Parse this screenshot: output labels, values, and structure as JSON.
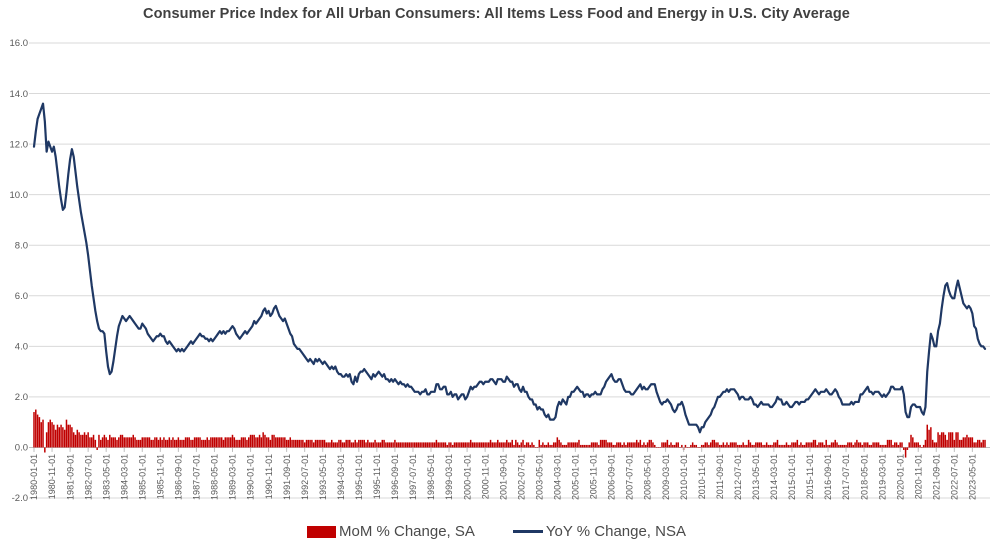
{
  "title": "Consumer Price Index for All Urban Consumers: All Items Less Food and Energy in U.S. City Average",
  "colors": {
    "bar": "#C00000",
    "line": "#1F3864",
    "gridline": "#D9D9D9",
    "axis_line": "#BFBFBF",
    "tick_text": "#595959",
    "title_text": "#404040",
    "legend_text": "#4a4a4a",
    "background": "#FFFFFF"
  },
  "legend": [
    {
      "label": "MoM % Change, SA",
      "swatch": "bar-swatch"
    },
    {
      "label": "YoY % Change, NSA",
      "swatch": "line-swatch"
    }
  ],
  "chart_data": {
    "type": "bar",
    "subtype": "combo bar + line, monthly time series",
    "title": "Consumer Price Index for All Urban Consumers: All Items Less Food and Energy in U.S. City Average",
    "xlabel": "",
    "ylabel": "",
    "start_month": "1980-01",
    "end_month": "2023-12",
    "months_count": 528,
    "ylim": [
      -2.0,
      16.0
    ],
    "grid": "horizontal only",
    "legend_position": "bottom center",
    "y_ticks": [
      "16.0",
      "14.0",
      "12.0",
      "10.0",
      "8.0",
      "6.0",
      "4.0",
      "2.0",
      "0.0",
      "-2.0"
    ],
    "x_tick_every_n_months": 10,
    "x_tick_labels": [
      "1980-01-01",
      "1980-11-01",
      "1981-09-01",
      "1982-07-01",
      "1983-05-01",
      "1984-03-01",
      "1985-01-01",
      "1985-11-01",
      "1986-09-01",
      "1987-07-01",
      "1988-05-01",
      "1989-03-01",
      "1990-01-01",
      "1990-11-01",
      "1991-09-01",
      "1992-07-01",
      "1993-05-01",
      "1994-03-01",
      "1995-01-01",
      "1995-11-01",
      "1996-09-01",
      "1997-07-01",
      "1998-05-01",
      "1999-03-01",
      "2000-01-01",
      "2000-11-01",
      "2001-09-01",
      "2002-07-01",
      "2003-05-01",
      "2004-03-01",
      "2005-01-01",
      "2005-11-01",
      "2006-09-01",
      "2007-07-01",
      "2008-05-01",
      "2009-03-01",
      "2010-01-01",
      "2010-11-01",
      "2011-09-01",
      "2012-07-01",
      "2013-05-01",
      "2014-03-01",
      "2015-01-01",
      "2015-11-01",
      "2016-09-01",
      "2017-07-01",
      "2018-05-01",
      "2019-03-01",
      "2020-01-01",
      "2020-11-01",
      "2021-09-01",
      "2022-07-01",
      "2023-05-01"
    ],
    "series": [
      {
        "name": "MoM % Change, SA",
        "type": "bar",
        "color": "#C00000",
        "values": [
          1.4,
          1.5,
          1.3,
          1.2,
          1.0,
          1.1,
          -0.2,
          0.6,
          1.0,
          1.1,
          1.0,
          0.9,
          0.7,
          0.9,
          0.8,
          0.9,
          0.8,
          0.7,
          1.1,
          0.9,
          0.9,
          0.8,
          0.6,
          0.5,
          0.7,
          0.6,
          0.5,
          0.5,
          0.6,
          0.5,
          0.6,
          0.4,
          0.4,
          0.5,
          0.3,
          -0.1,
          0.5,
          0.3,
          0.4,
          0.5,
          0.4,
          0.3,
          0.5,
          0.4,
          0.4,
          0.4,
          0.3,
          0.4,
          0.5,
          0.5,
          0.4,
          0.4,
          0.4,
          0.4,
          0.4,
          0.5,
          0.4,
          0.3,
          0.3,
          0.3,
          0.4,
          0.4,
          0.4,
          0.4,
          0.4,
          0.3,
          0.3,
          0.4,
          0.4,
          0.3,
          0.4,
          0.3,
          0.4,
          0.3,
          0.3,
          0.4,
          0.3,
          0.4,
          0.3,
          0.3,
          0.4,
          0.3,
          0.3,
          0.3,
          0.4,
          0.4,
          0.4,
          0.3,
          0.3,
          0.4,
          0.4,
          0.4,
          0.4,
          0.3,
          0.3,
          0.3,
          0.4,
          0.3,
          0.4,
          0.4,
          0.4,
          0.4,
          0.4,
          0.4,
          0.4,
          0.3,
          0.4,
          0.4,
          0.4,
          0.4,
          0.5,
          0.4,
          0.3,
          0.3,
          0.3,
          0.4,
          0.4,
          0.4,
          0.3,
          0.4,
          0.5,
          0.5,
          0.5,
          0.4,
          0.4,
          0.5,
          0.4,
          0.6,
          0.5,
          0.4,
          0.4,
          0.3,
          0.5,
          0.5,
          0.4,
          0.4,
          0.4,
          0.4,
          0.4,
          0.4,
          0.3,
          0.3,
          0.4,
          0.3,
          0.3,
          0.3,
          0.3,
          0.3,
          0.3,
          0.3,
          0.2,
          0.3,
          0.3,
          0.3,
          0.3,
          0.2,
          0.3,
          0.3,
          0.3,
          0.3,
          0.3,
          0.3,
          0.2,
          0.2,
          0.2,
          0.3,
          0.2,
          0.2,
          0.2,
          0.3,
          0.3,
          0.2,
          0.2,
          0.3,
          0.3,
          0.3,
          0.2,
          0.2,
          0.3,
          0.2,
          0.3,
          0.3,
          0.3,
          0.3,
          0.2,
          0.3,
          0.2,
          0.2,
          0.2,
          0.3,
          0.2,
          0.2,
          0.2,
          0.3,
          0.3,
          0.2,
          0.2,
          0.2,
          0.2,
          0.2,
          0.3,
          0.2,
          0.2,
          0.2,
          0.2,
          0.2,
          0.2,
          0.2,
          0.2,
          0.2,
          0.2,
          0.2,
          0.2,
          0.2,
          0.2,
          0.2,
          0.2,
          0.2,
          0.2,
          0.2,
          0.2,
          0.2,
          0.2,
          0.3,
          0.2,
          0.2,
          0.2,
          0.2,
          0.2,
          0.1,
          0.2,
          0.2,
          0.1,
          0.2,
          0.2,
          0.2,
          0.2,
          0.2,
          0.2,
          0.2,
          0.2,
          0.2,
          0.3,
          0.2,
          0.2,
          0.2,
          0.2,
          0.2,
          0.2,
          0.2,
          0.2,
          0.2,
          0.2,
          0.3,
          0.2,
          0.2,
          0.2,
          0.3,
          0.2,
          0.2,
          0.2,
          0.2,
          0.3,
          0.2,
          0.2,
          0.3,
          0.1,
          0.3,
          0.2,
          0.1,
          0.2,
          0.3,
          0.1,
          0.2,
          0.2,
          0.1,
          0.2,
          0.1,
          0.0,
          0.0,
          0.3,
          0.1,
          0.2,
          0.1,
          0.1,
          0.2,
          0.1,
          0.1,
          0.2,
          0.2,
          0.4,
          0.3,
          0.2,
          0.1,
          0.1,
          0.1,
          0.2,
          0.2,
          0.2,
          0.2,
          0.2,
          0.2,
          0.3,
          0.1,
          0.1,
          0.1,
          0.1,
          0.1,
          0.1,
          0.2,
          0.2,
          0.2,
          0.2,
          0.1,
          0.3,
          0.3,
          0.3,
          0.3,
          0.2,
          0.2,
          0.2,
          0.1,
          0.1,
          0.2,
          0.2,
          0.2,
          0.1,
          0.2,
          0.1,
          0.2,
          0.2,
          0.2,
          0.2,
          0.2,
          0.3,
          0.2,
          0.3,
          0.1,
          0.2,
          0.1,
          0.2,
          0.3,
          0.3,
          0.2,
          0.1,
          0.0,
          0.0,
          0.0,
          0.2,
          0.2,
          0.2,
          0.3,
          0.1,
          0.2,
          0.1,
          0.1,
          0.2,
          0.2,
          0.0,
          0.1,
          -0.1,
          0.1,
          0.0,
          0.0,
          0.1,
          0.2,
          0.1,
          0.1,
          0.0,
          0.0,
          0.1,
          0.1,
          0.2,
          0.2,
          0.1,
          0.2,
          0.3,
          0.3,
          0.2,
          0.2,
          0.1,
          0.1,
          0.2,
          0.1,
          0.2,
          0.1,
          0.2,
          0.2,
          0.2,
          0.2,
          0.1,
          0.1,
          0.1,
          0.2,
          0.1,
          0.1,
          0.3,
          0.2,
          0.1,
          0.1,
          0.2,
          0.2,
          0.2,
          0.2,
          0.1,
          0.1,
          0.2,
          0.1,
          0.1,
          0.1,
          0.2,
          0.2,
          0.3,
          0.1,
          0.1,
          0.1,
          0.1,
          0.2,
          0.1,
          0.1,
          0.2,
          0.2,
          0.2,
          0.3,
          0.1,
          0.2,
          0.1,
          0.1,
          0.2,
          0.2,
          0.2,
          0.2,
          0.3,
          0.3,
          0.1,
          0.2,
          0.2,
          0.2,
          0.1,
          0.3,
          0.1,
          0.1,
          0.2,
          0.2,
          0.3,
          0.2,
          0.1,
          0.1,
          0.1,
          0.1,
          0.1,
          0.2,
          0.2,
          0.2,
          0.1,
          0.2,
          0.3,
          0.2,
          0.2,
          0.1,
          0.2,
          0.2,
          0.2,
          0.1,
          0.1,
          0.2,
          0.2,
          0.2,
          0.2,
          0.1,
          0.1,
          0.1,
          0.1,
          0.3,
          0.3,
          0.3,
          0.1,
          0.2,
          0.2,
          0.1,
          0.2,
          0.2,
          -0.1,
          -0.4,
          -0.1,
          0.2,
          0.5,
          0.4,
          0.2,
          0.2,
          0.2,
          0.1,
          0.0,
          0.1,
          0.3,
          0.9,
          0.7,
          0.8,
          0.3,
          0.2,
          0.2,
          0.6,
          0.5,
          0.6,
          0.6,
          0.5,
          0.3,
          0.6,
          0.6,
          0.6,
          0.3,
          0.6,
          0.6,
          0.3,
          0.3,
          0.4,
          0.4,
          0.5,
          0.4,
          0.4,
          0.4,
          0.2,
          0.2,
          0.3,
          0.3,
          0.2,
          0.3,
          0.3
        ]
      },
      {
        "name": "YoY % Change, NSA",
        "type": "line",
        "color": "#1F3864",
        "values": [
          11.9,
          12.5,
          13.0,
          13.2,
          13.4,
          13.6,
          12.9,
          11.7,
          12.1,
          11.9,
          11.7,
          11.9,
          11.5,
          10.9,
          10.3,
          9.8,
          9.4,
          9.5,
          10.1,
          10.8,
          11.4,
          11.8,
          11.5,
          10.9,
          10.3,
          9.8,
          9.3,
          8.9,
          8.5,
          8.1,
          7.6,
          7.0,
          6.4,
          5.9,
          5.4,
          5.0,
          4.7,
          4.6,
          4.6,
          4.5,
          3.8,
          3.2,
          2.9,
          3.0,
          3.4,
          3.9,
          4.4,
          4.8,
          5.0,
          5.2,
          5.1,
          5.0,
          5.1,
          5.2,
          5.1,
          5.0,
          4.9,
          4.8,
          4.7,
          4.7,
          4.9,
          4.8,
          4.7,
          4.5,
          4.4,
          4.3,
          4.2,
          4.3,
          4.4,
          4.4,
          4.5,
          4.4,
          4.4,
          4.2,
          4.1,
          4.2,
          4.1,
          4.0,
          3.9,
          3.8,
          3.9,
          3.8,
          3.9,
          3.8,
          3.9,
          4.0,
          4.1,
          4.2,
          4.1,
          4.2,
          4.3,
          4.4,
          4.5,
          4.4,
          4.4,
          4.3,
          4.3,
          4.2,
          4.3,
          4.2,
          4.3,
          4.4,
          4.5,
          4.6,
          4.5,
          4.6,
          4.5,
          4.6,
          4.6,
          4.7,
          4.8,
          4.7,
          4.5,
          4.4,
          4.3,
          4.4,
          4.5,
          4.6,
          4.5,
          4.6,
          4.7,
          4.8,
          5.0,
          4.9,
          5.0,
          5.1,
          5.2,
          5.4,
          5.5,
          5.3,
          5.4,
          5.2,
          5.3,
          5.5,
          5.6,
          5.4,
          5.2,
          5.1,
          5.0,
          5.1,
          4.9,
          4.7,
          4.5,
          4.4,
          4.1,
          4.0,
          3.9,
          3.9,
          3.8,
          3.7,
          3.6,
          3.5,
          3.4,
          3.5,
          3.4,
          3.3,
          3.5,
          3.4,
          3.5,
          3.4,
          3.3,
          3.4,
          3.3,
          3.2,
          3.1,
          3.2,
          3.1,
          3.2,
          3.0,
          2.9,
          2.9,
          2.8,
          2.8,
          2.9,
          2.8,
          2.9,
          2.6,
          2.5,
          2.8,
          2.6,
          2.9,
          3.0,
          3.0,
          3.1,
          3.0,
          2.9,
          2.8,
          2.7,
          2.9,
          2.8,
          2.9,
          3.0,
          2.9,
          2.8,
          2.9,
          2.7,
          2.7,
          2.6,
          2.7,
          2.6,
          2.7,
          2.6,
          2.5,
          2.6,
          2.5,
          2.5,
          2.4,
          2.5,
          2.4,
          2.4,
          2.3,
          2.2,
          2.2,
          2.2,
          2.1,
          2.2,
          2.2,
          2.3,
          2.1,
          2.1,
          2.2,
          2.2,
          2.2,
          2.5,
          2.5,
          2.3,
          2.3,
          2.4,
          2.4,
          2.1,
          2.1,
          2.2,
          2.0,
          2.1,
          2.1,
          1.9,
          2.0,
          2.1,
          2.1,
          1.9,
          2.0,
          2.2,
          2.4,
          2.3,
          2.4,
          2.4,
          2.5,
          2.6,
          2.6,
          2.5,
          2.6,
          2.6,
          2.6,
          2.7,
          2.7,
          2.6,
          2.5,
          2.7,
          2.7,
          2.7,
          2.6,
          2.6,
          2.8,
          2.7,
          2.6,
          2.6,
          2.4,
          2.5,
          2.5,
          2.3,
          2.2,
          2.4,
          2.2,
          2.2,
          2.0,
          1.9,
          1.9,
          1.7,
          1.7,
          1.5,
          1.6,
          1.5,
          1.5,
          1.3,
          1.2,
          1.3,
          1.1,
          1.1,
          1.1,
          1.2,
          1.6,
          1.8,
          1.7,
          1.9,
          1.8,
          1.7,
          2.0,
          2.0,
          2.2,
          2.2,
          2.3,
          2.4,
          2.3,
          2.2,
          2.2,
          2.0,
          2.1,
          2.1,
          2.0,
          2.1,
          2.1,
          2.2,
          2.1,
          2.1,
          2.1,
          2.3,
          2.4,
          2.6,
          2.7,
          2.8,
          2.9,
          2.7,
          2.6,
          2.6,
          2.7,
          2.7,
          2.5,
          2.3,
          2.2,
          2.2,
          2.2,
          2.1,
          2.1,
          2.2,
          2.3,
          2.4,
          2.5,
          2.3,
          2.4,
          2.3,
          2.3,
          2.4,
          2.5,
          2.5,
          2.5,
          2.2,
          2.0,
          1.8,
          1.7,
          1.8,
          1.8,
          1.9,
          1.8,
          1.7,
          1.5,
          1.4,
          1.5,
          1.7,
          1.7,
          1.8,
          1.6,
          1.3,
          1.1,
          0.9,
          0.9,
          0.9,
          0.9,
          0.9,
          0.8,
          0.6,
          0.8,
          0.8,
          1.0,
          1.1,
          1.2,
          1.3,
          1.5,
          1.6,
          1.8,
          2.0,
          2.0,
          2.1,
          2.2,
          2.2,
          2.3,
          2.2,
          2.3,
          2.3,
          2.3,
          2.2,
          2.1,
          1.9,
          2.0,
          2.0,
          1.9,
          1.9,
          1.9,
          2.0,
          1.9,
          1.7,
          1.7,
          1.6,
          1.7,
          1.8,
          1.7,
          1.7,
          1.7,
          1.7,
          1.6,
          1.6,
          1.7,
          1.8,
          2.0,
          1.9,
          1.9,
          1.7,
          1.7,
          1.8,
          1.7,
          1.6,
          1.6,
          1.7,
          1.8,
          1.8,
          1.7,
          1.8,
          1.8,
          1.8,
          1.9,
          1.9,
          2.0,
          2.1,
          2.2,
          2.3,
          2.2,
          2.1,
          2.2,
          2.2,
          2.2,
          2.3,
          2.2,
          2.1,
          2.1,
          2.2,
          2.3,
          2.2,
          2.0,
          1.9,
          1.7,
          1.7,
          1.7,
          1.7,
          1.7,
          1.8,
          1.7,
          1.8,
          1.8,
          1.8,
          2.1,
          2.1,
          2.2,
          2.3,
          2.4,
          2.2,
          2.2,
          2.1,
          2.2,
          2.2,
          2.2,
          2.1,
          2.0,
          2.1,
          2.0,
          2.1,
          2.2,
          2.4,
          2.4,
          2.3,
          2.3,
          2.3,
          2.3,
          2.4,
          2.1,
          1.4,
          1.2,
          1.2,
          1.6,
          1.7,
          1.7,
          1.6,
          1.6,
          1.6,
          1.4,
          1.3,
          1.6,
          3.0,
          3.8,
          4.5,
          4.3,
          4.0,
          4.0,
          4.6,
          4.9,
          5.5,
          6.0,
          6.4,
          6.5,
          6.2,
          6.0,
          5.9,
          5.9,
          6.3,
          6.6,
          6.3,
          6.0,
          5.7,
          5.6,
          5.5,
          5.6,
          5.5,
          5.3,
          4.8,
          4.7,
          4.3,
          4.1,
          4.0,
          4.0,
          3.9
        ]
      }
    ]
  }
}
